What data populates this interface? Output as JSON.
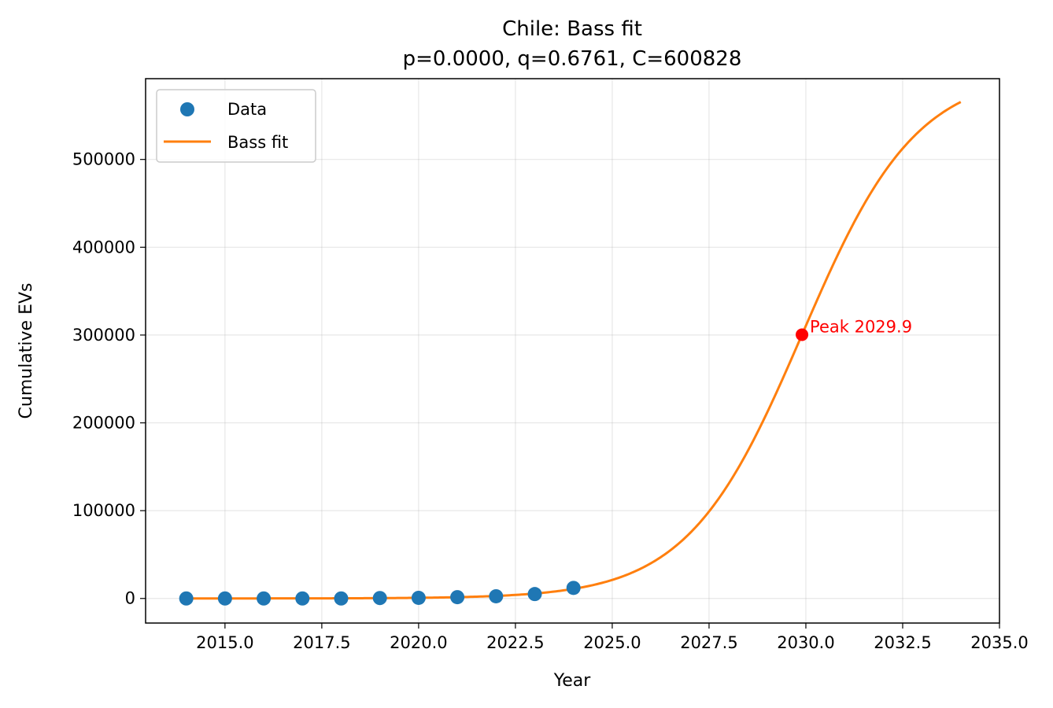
{
  "chart_data": {
    "type": "line",
    "title": "Chile: Bass fit",
    "subtitle": "p=0.0000, q=0.6761, C=600828",
    "xlabel": "Year",
    "ylabel": "Cumulative EVs",
    "xlim": [
      2012.95,
      2035.0
    ],
    "ylim": [
      -28000,
      592000
    ],
    "xticks": [
      2015.0,
      2017.5,
      2020.0,
      2022.5,
      2025.0,
      2027.5,
      2030.0,
      2032.5,
      2035.0
    ],
    "xtick_labels": [
      "2015.0",
      "2017.5",
      "2020.0",
      "2022.5",
      "2025.0",
      "2027.5",
      "2030.0",
      "2032.5",
      "2035.0"
    ],
    "yticks": [
      0,
      100000,
      200000,
      300000,
      400000,
      500000
    ],
    "ytick_labels": [
      "0",
      "100000",
      "200000",
      "300000",
      "400000",
      "500000"
    ],
    "grid": true,
    "legend_position": "top-left",
    "series": [
      {
        "name": "Data",
        "kind": "scatter",
        "color": "#1f77b4",
        "x": [
          2014,
          2015,
          2016,
          2017,
          2018,
          2019,
          2020,
          2021,
          2022,
          2023,
          2024
        ],
        "y": [
          0,
          0,
          0,
          0,
          0,
          500,
          700,
          1500,
          2500,
          5000,
          12000
        ]
      },
      {
        "name": "Bass fit",
        "kind": "line",
        "color": "#ff7f0e",
        "model": {
          "p": 0.0,
          "q": 0.6761,
          "C": 600828,
          "x_start": 2014,
          "x_end": 2034
        }
      }
    ],
    "annotations": [
      {
        "text": "Peak 2029.9",
        "x": 2029.9,
        "y": 300414,
        "color": "#ff0000"
      }
    ]
  }
}
